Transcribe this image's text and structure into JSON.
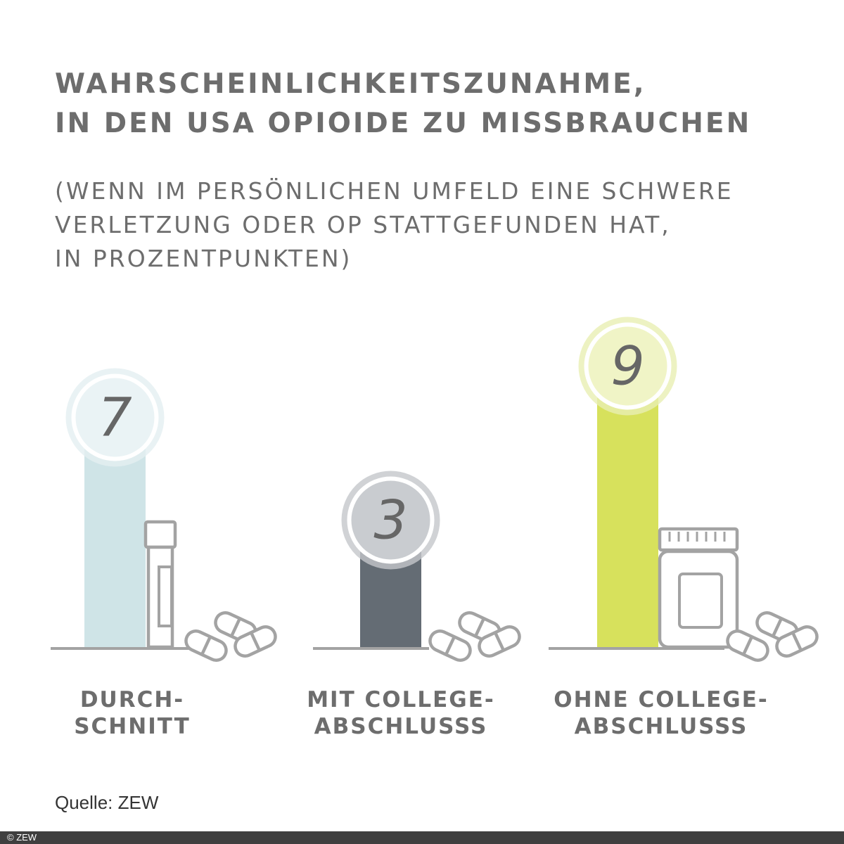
{
  "chart_data": {
    "type": "bar",
    "title": [
      "WAHRSCHEINLICHKEITSZUNAHME,",
      "IN DEN USA OPIOIDE ZU MISSBRAUCHEN"
    ],
    "subtitle": [
      "(WENN IM PERSÖNLICHEN UMFELD EINE SCHWERE",
      "VERLETZUNG ODER OP STATTGEFUNDEN HAT,",
      "IN PROZENTPUNKTEN)"
    ],
    "categories": [
      [
        "DURCH-",
        "SCHNITT"
      ],
      [
        "MIT COLLEGE-",
        "ABSCHLUSSS"
      ],
      [
        "OHNE COLLEGE-",
        "ABSCHLUSSS"
      ]
    ],
    "values": [
      7,
      3,
      9
    ],
    "value_labels": [
      "7",
      "3",
      "9"
    ],
    "colors": {
      "bars": [
        "#cfe4e7",
        "#646c74",
        "#d7e15c"
      ],
      "circles": [
        "#eaf3f5",
        "#c9ccd0",
        "#f0f4c6"
      ],
      "rings": [
        "#e4eff1",
        "#c4c7cb",
        "#e9efb3"
      ],
      "icons": "#a3a3a3",
      "text": "#6d6d6d"
    },
    "icons": [
      "vial-icon",
      "pills-icon",
      "pill-bottle-icon"
    ],
    "grid": false
  },
  "source": "Quelle: ZEW",
  "footer": "© ZEW"
}
